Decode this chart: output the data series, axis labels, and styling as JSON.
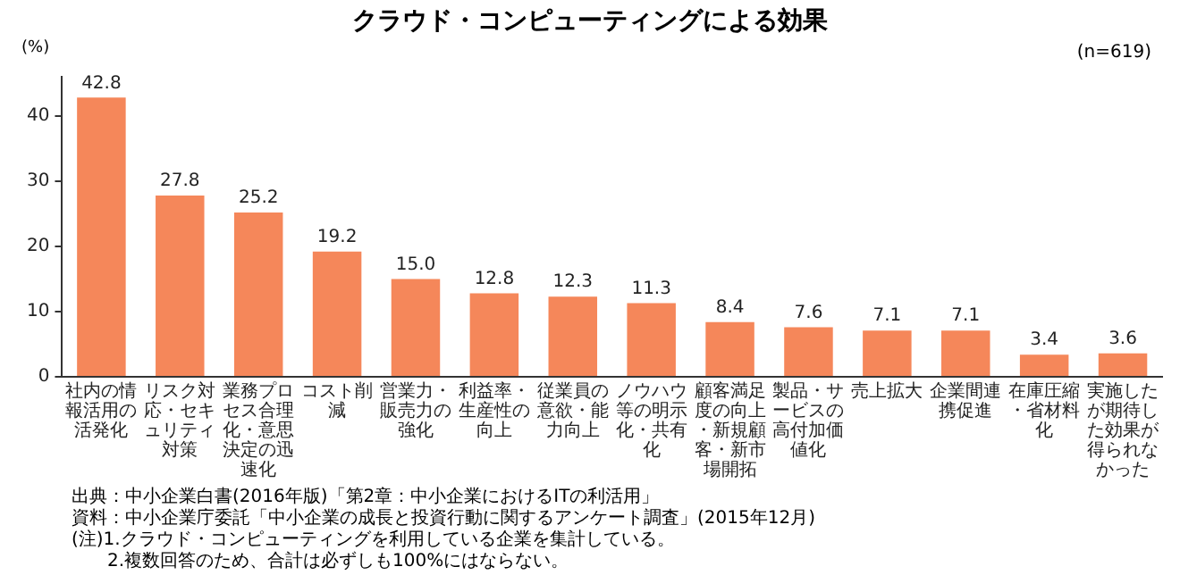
{
  "chart_data": {
    "type": "bar",
    "title": "クラウド・コンピューティングによる効果",
    "subtitle": "(n=619)",
    "ylabel": "(%)",
    "categories": [
      "社内の情報活用の活発化",
      "リスク対応・セキュリティ対策",
      "業務プロセス合理化・意思決定の迅速化",
      "コスト削減",
      "営業力・販売力の強化",
      "利益率・生産性の向上",
      "従業員の意欲・能力向上",
      "ノウハウ等の明示化・共有化",
      "顧客満足度の向上・新規顧客・新市場開拓",
      "製品・サービスの高付加価値化",
      "売上拡大",
      "企業間連携促進",
      "在庫圧縮・省材料化",
      "実施したが期待した効果が得られなかった"
    ],
    "values": [
      42.8,
      27.8,
      25.2,
      19.2,
      15.0,
      12.8,
      12.3,
      11.3,
      8.4,
      7.6,
      7.1,
      7.1,
      3.4,
      3.6
    ],
    "value_labels": [
      "42.8",
      "27.8",
      "25.2",
      "19.2",
      "15.0",
      "12.8",
      "12.3",
      "11.3",
      "8.4",
      "7.6",
      "7.1",
      "7.1",
      "3.4",
      "3.6"
    ],
    "color": "#f5875a",
    "ylim": [
      0,
      46
    ],
    "yticks": [
      0,
      10,
      20,
      30,
      40
    ],
    "grid": false,
    "legend": false,
    "annotations": [
      "出典：中小企業白書(2016年版)「第2章：中小企業におけるITの利活用」",
      "資料：中小企業庁委託「中小企業の成長と投資行動に関するアンケート調査」(2015年12月)",
      "(注)1.クラウド・コンピューティングを利用している企業を集計している。",
      "　　2.複数回答のため、合計は必ずしも100%にはならない。"
    ]
  }
}
